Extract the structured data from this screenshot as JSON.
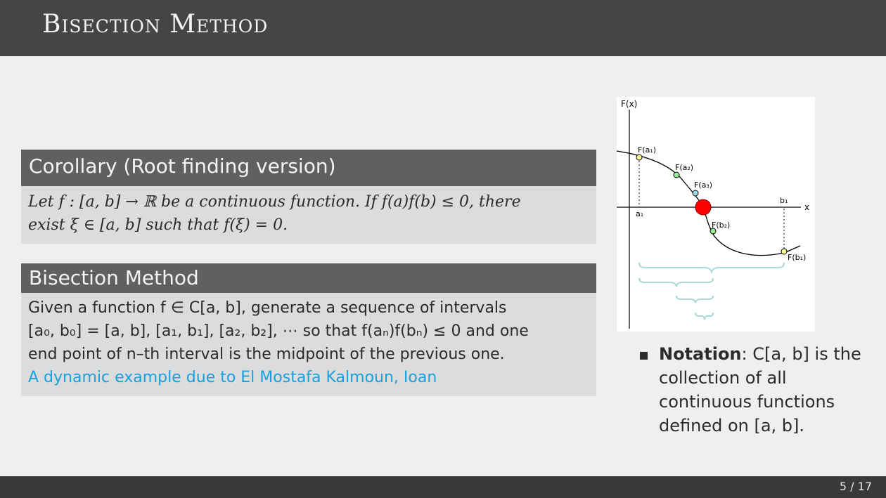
{
  "slide": {
    "title": "Bisection Method",
    "page_number": "5 / 17"
  },
  "corollary": {
    "heading": "Corollary (Root finding version)",
    "line1": "Let f : [a, b] → ℝ be a continuous function. If f(a)f(b) ≤ 0, there",
    "line2": "exist ξ ∈ [a, b] such that f(ξ) = 0."
  },
  "bisection": {
    "heading": "Bisection Method",
    "line1": "Given a function f ∈ C[a, b], generate a sequence of intervals",
    "line2": "[a₀, b₀] = [a, b], [a₁, b₁], [a₂, b₂], ⋯ so that f(aₙ)f(bₙ) ≤ 0 and one",
    "line3": "end point of n–th interval is the midpoint of the previous one.",
    "link_text": "A dynamic example due to El Mostafa Kalmoun, Ioan"
  },
  "figure": {
    "y_axis_label": "F(x)",
    "x_axis_label": "x",
    "labels": {
      "Fa1": "F(a₁)",
      "Fa2": "F(a₂)",
      "Fa3": "F(a₃)",
      "Fb1": "F(b₁)",
      "Fb2": "F(b₂)",
      "a1": "a₁",
      "b1": "b₁"
    },
    "colors": {
      "root": "#ff0000",
      "point_yellow": "#ffff99",
      "point_green": "#99ee99",
      "point_blue": "#99ddee",
      "brace": "#a8d8d8"
    }
  },
  "notation": {
    "bold": "Notation",
    "text": ": C[a, b] is the",
    "line2": "collection of all",
    "line3": "continuous functions",
    "line4": "defined on [a, b]."
  }
}
